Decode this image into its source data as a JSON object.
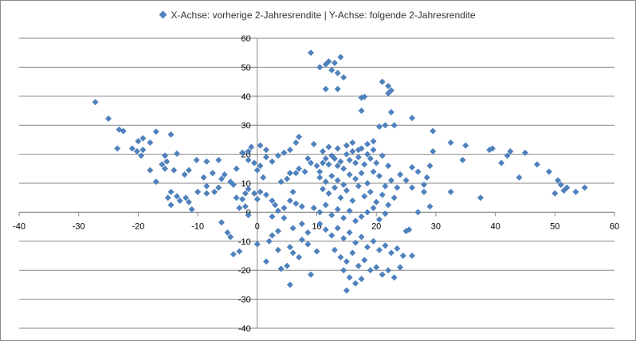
{
  "chart_data": {
    "type": "scatter",
    "legend_label": "X-Achse: vorherige 2-Jahresrendite | Y-Achse: folgende 2-Jahresrendite",
    "legend_position": "top",
    "series_color": "#4f81bd",
    "gridlines": "horizontal",
    "xlim": [
      -40,
      60
    ],
    "ylim": [
      -40,
      60
    ],
    "x_ticks": [
      -40,
      -30,
      -20,
      -10,
      0,
      10,
      20,
      30,
      40,
      50,
      60
    ],
    "y_ticks": [
      -40,
      -30,
      -20,
      -10,
      0,
      10,
      20,
      30,
      40,
      50,
      60
    ],
    "points": [
      [
        -27.2,
        38
      ],
      [
        -25,
        32.3
      ],
      [
        -23.2,
        28.5
      ],
      [
        -22.5,
        28
      ],
      [
        -20,
        24.5
      ],
      [
        -19.2,
        25.5
      ],
      [
        -17,
        27.8
      ],
      [
        -14.5,
        26.8
      ],
      [
        -18,
        24
      ],
      [
        -20.2,
        21
      ],
      [
        -19.5,
        19.5
      ],
      [
        -21,
        22
      ],
      [
        -23.5,
        22
      ],
      [
        -19.2,
        21.5
      ],
      [
        -13.5,
        20.2
      ],
      [
        -15.5,
        19.5
      ],
      [
        -16,
        16.5
      ],
      [
        -15.2,
        17.5
      ],
      [
        -15.5,
        15
      ],
      [
        -14,
        14.5
      ],
      [
        -12.2,
        13
      ],
      [
        -11.5,
        14.5
      ],
      [
        -10.2,
        18
      ],
      [
        -8.5,
        17.5
      ],
      [
        -6.5,
        18
      ],
      [
        -18,
        14.5
      ],
      [
        -17,
        10.5
      ],
      [
        -14.5,
        7
      ],
      [
        -13.5,
        5.5
      ],
      [
        -15,
        5
      ],
      [
        -14.5,
        2.5
      ],
      [
        -13,
        4
      ],
      [
        -11.5,
        3.5
      ],
      [
        -11,
        1
      ],
      [
        -12,
        5
      ],
      [
        -10,
        7
      ],
      [
        -8.5,
        9
      ],
      [
        -8.5,
        6.5
      ],
      [
        -7.2,
        7
      ],
      [
        -6.5,
        8.5
      ],
      [
        -6,
        11.5
      ],
      [
        -4.5,
        10.5
      ],
      [
        -4,
        9.5
      ],
      [
        -3.5,
        5
      ],
      [
        -2.5,
        4.5
      ],
      [
        -2,
        6.5
      ],
      [
        -3,
        1.5
      ],
      [
        -2,
        2
      ],
      [
        -1.5,
        8
      ],
      [
        -0.5,
        6.5
      ],
      [
        -1,
        22.5
      ],
      [
        -2.5,
        20.5
      ],
      [
        -1.5,
        21
      ],
      [
        0.5,
        23
      ],
      [
        1.5,
        21.5
      ],
      [
        -0.5,
        17
      ],
      [
        0,
        14.5
      ],
      [
        1,
        12
      ],
      [
        0.5,
        7
      ],
      [
        0,
        4.5
      ],
      [
        1.5,
        6
      ],
      [
        2.5,
        4
      ],
      [
        3,
        2.5
      ],
      [
        3.5,
        0.5
      ],
      [
        4.5,
        1.5
      ],
      [
        5.5,
        4
      ],
      [
        6.5,
        3
      ],
      [
        7.5,
        2
      ],
      [
        6,
        7
      ],
      [
        4,
        10.5
      ],
      [
        5,
        11.5
      ],
      [
        5.5,
        13.5
      ],
      [
        6.5,
        13.5
      ],
      [
        7,
        15
      ],
      [
        8,
        14
      ],
      [
        8.5,
        18.5
      ],
      [
        9,
        17
      ],
      [
        10,
        16
      ],
      [
        10.5,
        14
      ],
      [
        11,
        17
      ],
      [
        11.5,
        18.5
      ],
      [
        12,
        16.5
      ],
      [
        12.5,
        19.5
      ],
      [
        13,
        18.5
      ],
      [
        13.5,
        16
      ],
      [
        14,
        17.5
      ],
      [
        14.5,
        15
      ],
      [
        15,
        20
      ],
      [
        15.5,
        18
      ],
      [
        16,
        21
      ],
      [
        16.5,
        17
      ],
      [
        17,
        19
      ],
      [
        17.5,
        22
      ],
      [
        18,
        16.5
      ],
      [
        18.5,
        20
      ],
      [
        19,
        18.5
      ],
      [
        19.5,
        21.5
      ],
      [
        20,
        17
      ],
      [
        21,
        19.5
      ],
      [
        22,
        16
      ],
      [
        10.5,
        12
      ],
      [
        11.5,
        10.5
      ],
      [
        12.5,
        12.5
      ],
      [
        13.5,
        11
      ],
      [
        14.5,
        9.5
      ],
      [
        15.5,
        13
      ],
      [
        16.5,
        11.5
      ],
      [
        17.5,
        13.5
      ],
      [
        18.5,
        10
      ],
      [
        19.5,
        14
      ],
      [
        20.5,
        12.5
      ],
      [
        21.5,
        9
      ],
      [
        22.5,
        11
      ],
      [
        23.5,
        8.5
      ],
      [
        24,
        13
      ],
      [
        25,
        11
      ],
      [
        26,
        15.5
      ],
      [
        27,
        14
      ],
      [
        28,
        9.5
      ],
      [
        28.5,
        12
      ],
      [
        29,
        16
      ],
      [
        11,
        8
      ],
      [
        12,
        6.5
      ],
      [
        13,
        8.5
      ],
      [
        14,
        5
      ],
      [
        15,
        7.5
      ],
      [
        16,
        4
      ],
      [
        17,
        9
      ],
      [
        18,
        5.5
      ],
      [
        19,
        7
      ],
      [
        20,
        3.5
      ],
      [
        21,
        6
      ],
      [
        22,
        2.5
      ],
      [
        23,
        5
      ],
      [
        9.5,
        1.5
      ],
      [
        10.5,
        0
      ],
      [
        11.5,
        2.5
      ],
      [
        12.5,
        -1
      ],
      [
        13.5,
        1
      ],
      [
        14.5,
        -2
      ],
      [
        15.5,
        0.5
      ],
      [
        16.5,
        -3
      ],
      [
        17.5,
        -1.5
      ],
      [
        18.5,
        0
      ],
      [
        19.5,
        1.5
      ],
      [
        20.5,
        -2.5
      ],
      [
        21.5,
        -0.5
      ],
      [
        10.5,
        -4
      ],
      [
        11.5,
        -6
      ],
      [
        12.5,
        -8
      ],
      [
        13.5,
        -5.5
      ],
      [
        14.5,
        -9
      ],
      [
        15.5,
        -7
      ],
      [
        16.5,
        -10.5
      ],
      [
        17.5,
        -8.5
      ],
      [
        18.5,
        -12
      ],
      [
        19.5,
        -10
      ],
      [
        20.5,
        -13
      ],
      [
        21.5,
        -11.5
      ],
      [
        22.5,
        -14
      ],
      [
        23.5,
        -12.5
      ],
      [
        24.5,
        -15
      ],
      [
        13,
        -13
      ],
      [
        14,
        -15.5
      ],
      [
        15,
        -17
      ],
      [
        16,
        -14
      ],
      [
        17,
        -18.5
      ],
      [
        18,
        -16.5
      ],
      [
        19,
        -20
      ],
      [
        20,
        -19
      ],
      [
        21,
        -21.5
      ],
      [
        22,
        -20
      ],
      [
        23,
        -22.5
      ],
      [
        24,
        -19
      ],
      [
        14.5,
        -20
      ],
      [
        15.5,
        -22.5
      ],
      [
        16.5,
        -24.5
      ],
      [
        17.5,
        -23
      ],
      [
        15,
        -27
      ],
      [
        9,
        55
      ],
      [
        10.5,
        50
      ],
      [
        11.5,
        51
      ],
      [
        12,
        52
      ],
      [
        12.5,
        49
      ],
      [
        13,
        51.5
      ],
      [
        14,
        53.5
      ],
      [
        13.5,
        48
      ],
      [
        14.5,
        46.5
      ],
      [
        11.5,
        42.5
      ],
      [
        13.5,
        42.5
      ],
      [
        17.5,
        39.5
      ],
      [
        18,
        39.8
      ],
      [
        17.5,
        35
      ],
      [
        21,
        45
      ],
      [
        22,
        43.5
      ],
      [
        22.5,
        42
      ],
      [
        22,
        41
      ],
      [
        20.5,
        29.5
      ],
      [
        21.5,
        30
      ],
      [
        22.5,
        34.5
      ],
      [
        23,
        30
      ],
      [
        26,
        32.5
      ],
      [
        29.5,
        28
      ],
      [
        29.5,
        21
      ],
      [
        32.5,
        24
      ],
      [
        35,
        23
      ],
      [
        34.5,
        18
      ],
      [
        39.5,
        22
      ],
      [
        39,
        21.5
      ],
      [
        42,
        19.5
      ],
      [
        42.5,
        21
      ],
      [
        45,
        20.5
      ],
      [
        41,
        17
      ],
      [
        47,
        16.5
      ],
      [
        44,
        12
      ],
      [
        49,
        14
      ],
      [
        50.5,
        11
      ],
      [
        51,
        9.5
      ],
      [
        52,
        8.5
      ],
      [
        51.5,
        7.5
      ],
      [
        53.5,
        7
      ],
      [
        55,
        8.5
      ],
      [
        50,
        6.5
      ],
      [
        37.5,
        5
      ],
      [
        32.5,
        7
      ],
      [
        28,
        7
      ],
      [
        26,
        8.5
      ],
      [
        29,
        2
      ],
      [
        27,
        0
      ],
      [
        25.5,
        -6
      ],
      [
        25,
        -6.5
      ],
      [
        26,
        -15
      ],
      [
        -6,
        -3.5
      ],
      [
        -5,
        -7
      ],
      [
        -4.5,
        -8.5
      ],
      [
        -3,
        -13.5
      ],
      [
        -4,
        -14.5
      ],
      [
        0,
        -11
      ],
      [
        1.5,
        -17
      ],
      [
        2.5,
        -8
      ],
      [
        3.5,
        -13
      ],
      [
        4,
        -19.5
      ],
      [
        5,
        -18.5
      ],
      [
        5.5,
        -12
      ],
      [
        6,
        -14
      ],
      [
        7,
        -15.5
      ],
      [
        7.5,
        -9.5
      ],
      [
        8.5,
        -11
      ],
      [
        10,
        -13.5
      ],
      [
        9,
        -21.5
      ],
      [
        5.5,
        -25
      ],
      [
        2,
        -10
      ],
      [
        3.5,
        -6.5
      ],
      [
        6,
        -5.5
      ],
      [
        7.5,
        -4
      ],
      [
        8.5,
        -7
      ],
      [
        4.5,
        -2
      ],
      [
        2.5,
        -1.5
      ],
      [
        -1.5,
        -1
      ],
      [
        -9,
        12
      ],
      [
        -7.5,
        13.5
      ],
      [
        -5.5,
        13
      ],
      [
        -3.5,
        15
      ],
      [
        -1.5,
        18
      ],
      [
        0.5,
        16
      ],
      [
        1.5,
        19
      ],
      [
        2.5,
        17.5
      ],
      [
        3.5,
        19.5
      ],
      [
        4.5,
        20.5
      ],
      [
        5.5,
        21.5
      ],
      [
        6.5,
        24
      ],
      [
        7,
        26
      ],
      [
        9.5,
        23.5
      ],
      [
        11,
        21
      ],
      [
        12,
        22.5
      ],
      [
        13.5,
        22
      ],
      [
        15,
        23
      ],
      [
        16,
        24
      ],
      [
        17,
        21.5
      ],
      [
        18.5,
        23.5
      ],
      [
        19.5,
        24.5
      ]
    ]
  }
}
